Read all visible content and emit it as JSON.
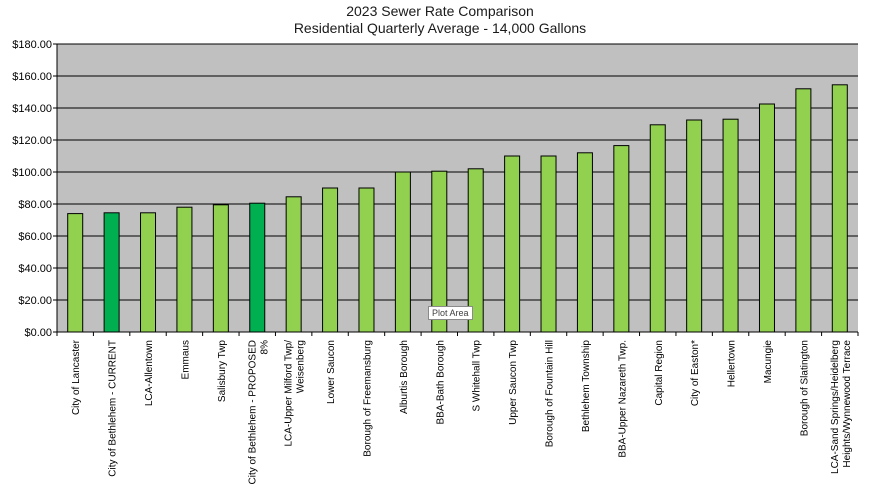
{
  "chart_data": {
    "type": "bar",
    "title": "2023 Sewer Rate Comparison",
    "subtitle": "Residential Quarterly Average - 14,000 Gallons",
    "ylim": [
      0,
      180
    ],
    "ytick_labels": [
      "$0.00",
      "$20.00",
      "$40.00",
      "$60.00",
      "$80.00",
      "$100.00",
      "$120.00",
      "$140.00",
      "$160.00",
      "$180.00"
    ],
    "ytick_values": [
      0,
      20,
      40,
      60,
      80,
      100,
      120,
      140,
      160,
      180
    ],
    "grid": true,
    "legend": "none",
    "categories": [
      [
        "City of Lancaster"
      ],
      [
        "City of Bethlehem - CURRENT"
      ],
      [
        "LCA-Allentown"
      ],
      [
        "Emmaus"
      ],
      [
        "Salisbury Twp"
      ],
      [
        "City of Bethlehem - PROPOSED",
        "8%"
      ],
      [
        "LCA-Upper Milford Twp/",
        "Weisenberg"
      ],
      [
        "Lower Saucon"
      ],
      [
        "Borough of Freemansburg"
      ],
      [
        "Alburtis Borough"
      ],
      [
        "BBA-Bath Borough"
      ],
      [
        "S Whitehall Twp"
      ],
      [
        "Upper Saucon Twp"
      ],
      [
        "Borough of Fountain Hill"
      ],
      [
        "Bethlehem Township"
      ],
      [
        "BBA-Upper Nazareth Twp."
      ],
      [
        "Capital Region"
      ],
      [
        "City of Easton*"
      ],
      [
        "Hellertown"
      ],
      [
        "Macungie"
      ],
      [
        "Borough of Slatington"
      ],
      [
        "LCA-Sand Springs/Heidelberg",
        "Heights/Wynnewood Terrace"
      ]
    ],
    "values": [
      74,
      74.5,
      74.5,
      78,
      79.5,
      80.5,
      84.5,
      90,
      90,
      100,
      100.5,
      102,
      110,
      110,
      112,
      116.5,
      129.5,
      132.5,
      133,
      142.5,
      152,
      154.5
    ],
    "highlight_indices": [
      1,
      5
    ],
    "colors": {
      "bar": "#92d050",
      "bar_highlight": "#00b050",
      "plot_bg": "#c0c0c0",
      "grid": "#000000",
      "bar_edge": "#000000"
    }
  },
  "tooltip": {
    "label": "Plot Area"
  }
}
